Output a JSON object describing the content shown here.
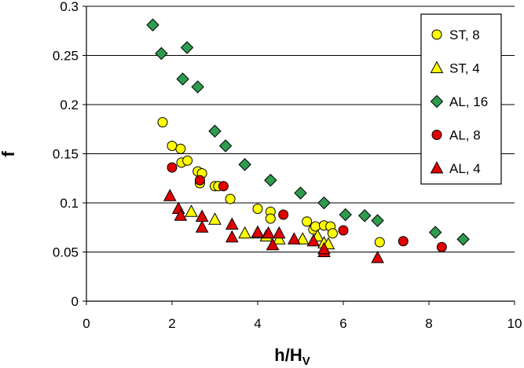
{
  "chart_data": {
    "type": "scatter",
    "title": "",
    "xlabel": "h/H",
    "xlabel_sub": "V",
    "ylabel": "f",
    "xlim": [
      0,
      10
    ],
    "ylim": [
      0,
      0.3
    ],
    "x_ticks": [
      "0",
      "2",
      "4",
      "6",
      "8",
      "10"
    ],
    "y_ticks": [
      "0",
      "0.05",
      "0.1",
      "0.15",
      "0.2",
      "0.25",
      "0.3"
    ],
    "grid": "horizontal",
    "legend_position": "top-right",
    "series": [
      {
        "name": "ST, 8",
        "marker": "circle",
        "color": "#FFFF00",
        "points": [
          [
            1.78,
            0.182
          ],
          [
            2.0,
            0.158
          ],
          [
            2.2,
            0.155
          ],
          [
            2.22,
            0.141
          ],
          [
            2.36,
            0.143
          ],
          [
            2.6,
            0.132
          ],
          [
            2.7,
            0.13
          ],
          [
            2.65,
            0.12
          ],
          [
            3.0,
            0.117
          ],
          [
            3.08,
            0.117
          ],
          [
            3.36,
            0.104
          ],
          [
            4.0,
            0.094
          ],
          [
            4.3,
            0.091
          ],
          [
            4.3,
            0.084
          ],
          [
            5.15,
            0.081
          ],
          [
            5.3,
            0.073
          ],
          [
            5.35,
            0.076
          ],
          [
            5.55,
            0.077
          ],
          [
            5.7,
            0.076
          ],
          [
            5.75,
            0.069
          ],
          [
            6.85,
            0.06
          ]
        ]
      },
      {
        "name": "ST, 4",
        "marker": "triangle",
        "color": "#FFFF00",
        "points": [
          [
            2.45,
            0.091
          ],
          [
            3.0,
            0.083
          ],
          [
            3.7,
            0.069
          ],
          [
            4.0,
            0.069
          ],
          [
            4.2,
            0.066
          ],
          [
            4.5,
            0.063
          ],
          [
            5.05,
            0.063
          ],
          [
            5.4,
            0.066
          ],
          [
            5.55,
            0.059
          ],
          [
            5.65,
            0.058
          ]
        ]
      },
      {
        "name": "AL, 16",
        "marker": "diamond",
        "color": "#2E9B4E",
        "points": [
          [
            1.55,
            0.281
          ],
          [
            1.75,
            0.252
          ],
          [
            2.35,
            0.258
          ],
          [
            2.25,
            0.226
          ],
          [
            2.6,
            0.218
          ],
          [
            3.0,
            0.173
          ],
          [
            3.25,
            0.158
          ],
          [
            3.7,
            0.139
          ],
          [
            4.3,
            0.123
          ],
          [
            5.0,
            0.11
          ],
          [
            5.55,
            0.1
          ],
          [
            6.05,
            0.088
          ],
          [
            6.5,
            0.087
          ],
          [
            6.8,
            0.082
          ],
          [
            8.15,
            0.07
          ],
          [
            8.8,
            0.063
          ]
        ]
      },
      {
        "name": "AL, 8",
        "marker": "circle",
        "color": "#E00000",
        "points": [
          [
            2.0,
            0.136
          ],
          [
            2.65,
            0.123
          ],
          [
            3.2,
            0.117
          ],
          [
            4.6,
            0.088
          ],
          [
            6.0,
            0.072
          ],
          [
            7.4,
            0.061
          ],
          [
            8.3,
            0.055
          ]
        ]
      },
      {
        "name": "AL, 4",
        "marker": "triangle",
        "color": "#E00000",
        "points": [
          [
            1.95,
            0.107
          ],
          [
            2.15,
            0.094
          ],
          [
            2.2,
            0.087
          ],
          [
            2.7,
            0.086
          ],
          [
            2.7,
            0.075
          ],
          [
            3.4,
            0.078
          ],
          [
            3.4,
            0.065
          ],
          [
            4.0,
            0.07
          ],
          [
            4.25,
            0.069
          ],
          [
            4.35,
            0.057
          ],
          [
            4.5,
            0.069
          ],
          [
            4.85,
            0.063
          ],
          [
            5.3,
            0.061
          ],
          [
            5.55,
            0.05
          ],
          [
            5.55,
            0.053
          ],
          [
            6.8,
            0.044
          ]
        ]
      }
    ]
  }
}
